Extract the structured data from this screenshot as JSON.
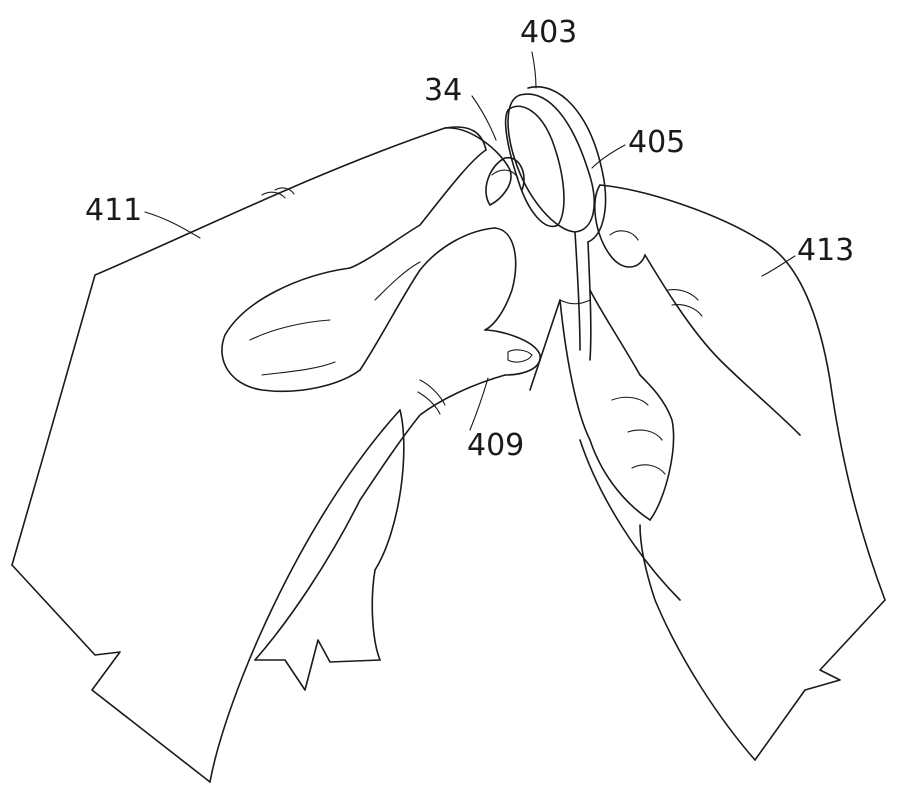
{
  "figure": {
    "labels": {
      "ref_403": "403",
      "ref_34": "34",
      "ref_405": "405",
      "ref_411": "411",
      "ref_413": "413",
      "ref_409": "409"
    }
  }
}
